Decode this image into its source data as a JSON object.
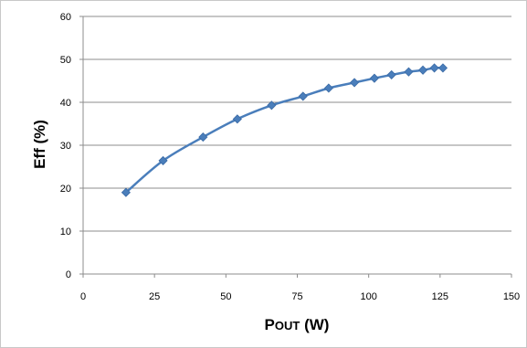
{
  "chart_data": {
    "type": "scatter",
    "title": "",
    "xlabel": {
      "main": "P",
      "small_caps": "OUT",
      "unit": " (W)"
    },
    "ylabel": "Eff (%)",
    "xlim": [
      0,
      150
    ],
    "ylim": [
      0,
      60
    ],
    "x_ticks": [
      "0",
      "25",
      "50",
      "75",
      "100",
      "125",
      "150"
    ],
    "y_ticks": [
      "0",
      "10",
      "20",
      "30",
      "40",
      "50",
      "60"
    ],
    "grid": "horizontal",
    "legend": "none",
    "line_style": "smoothed",
    "series": [
      {
        "color": "#4a7ebb",
        "marker": "diamond",
        "x": [
          15,
          28,
          42,
          54,
          66,
          77,
          86,
          95,
          102,
          108,
          114,
          119,
          123,
          126
        ],
        "y": [
          19.0,
          26.4,
          31.9,
          36.1,
          39.3,
          41.4,
          43.3,
          44.6,
          45.6,
          46.4,
          47.1,
          47.5,
          48.0,
          48.0
        ]
      }
    ]
  }
}
